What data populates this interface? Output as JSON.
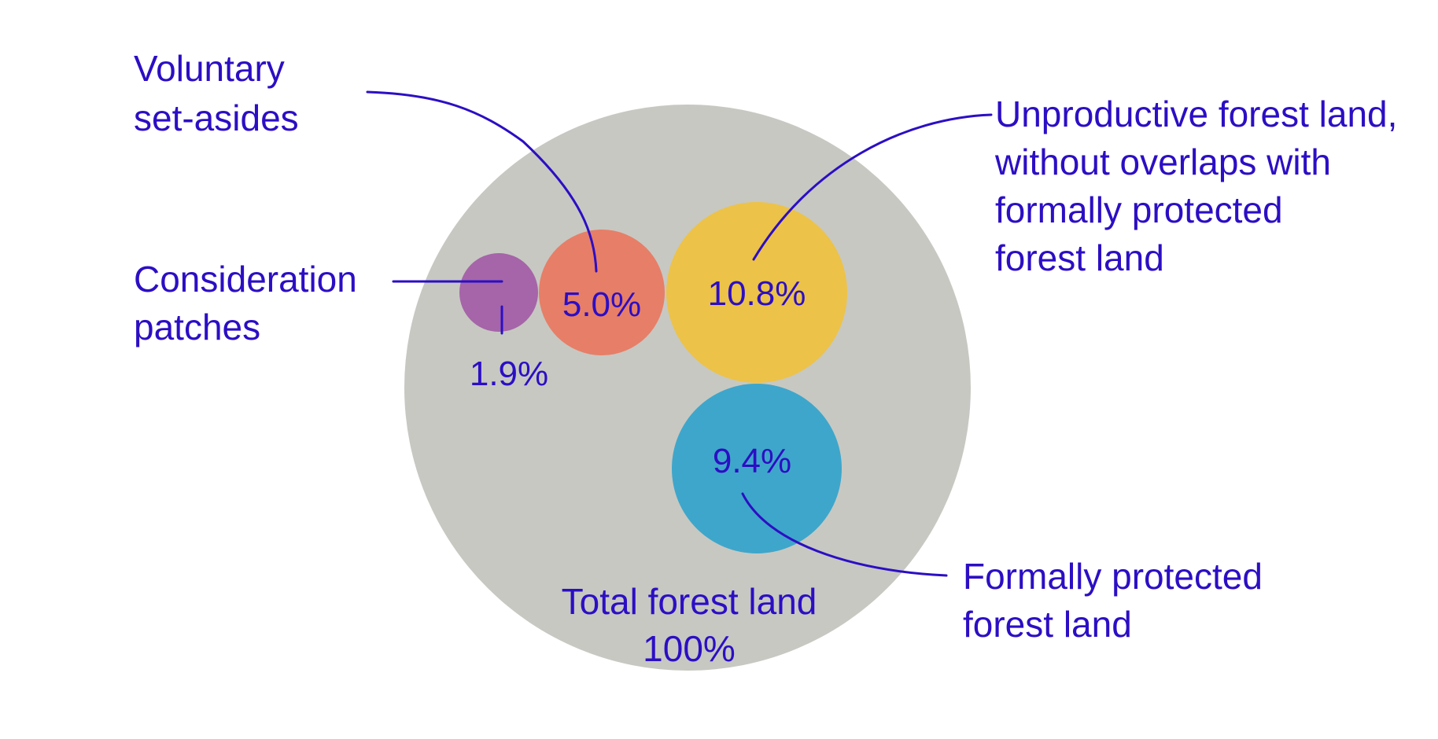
{
  "colors": {
    "text": "#2c0ec4",
    "line": "#2c0ec4",
    "total": "#c7c8c2"
  },
  "chart_data": {
    "type": "bubble",
    "title": "",
    "total": {
      "label_lines": [
        "Total forest land",
        "100%"
      ],
      "value": 100,
      "color": "#c7c8c2"
    },
    "series": [
      {
        "id": "consideration",
        "name_lines": [
          "Consideration",
          "patches"
        ],
        "value": 1.9,
        "value_label": "1.9%",
        "color": "#a565a8"
      },
      {
        "id": "voluntary",
        "name_lines": [
          "Voluntary",
          "set-asides"
        ],
        "value": 5.0,
        "value_label": "5.0%",
        "color": "#e77e67"
      },
      {
        "id": "unproductive",
        "name_lines": [
          "Unproductive forest land,",
          "without overlaps with",
          "formally protected",
          "forest land"
        ],
        "value": 10.8,
        "value_label": "10.8%",
        "color": "#ecc248"
      },
      {
        "id": "protected",
        "name_lines": [
          "Formally protected",
          "forest land"
        ],
        "value": 9.4,
        "value_label": "9.4%",
        "color": "#3ea6cb"
      }
    ]
  }
}
